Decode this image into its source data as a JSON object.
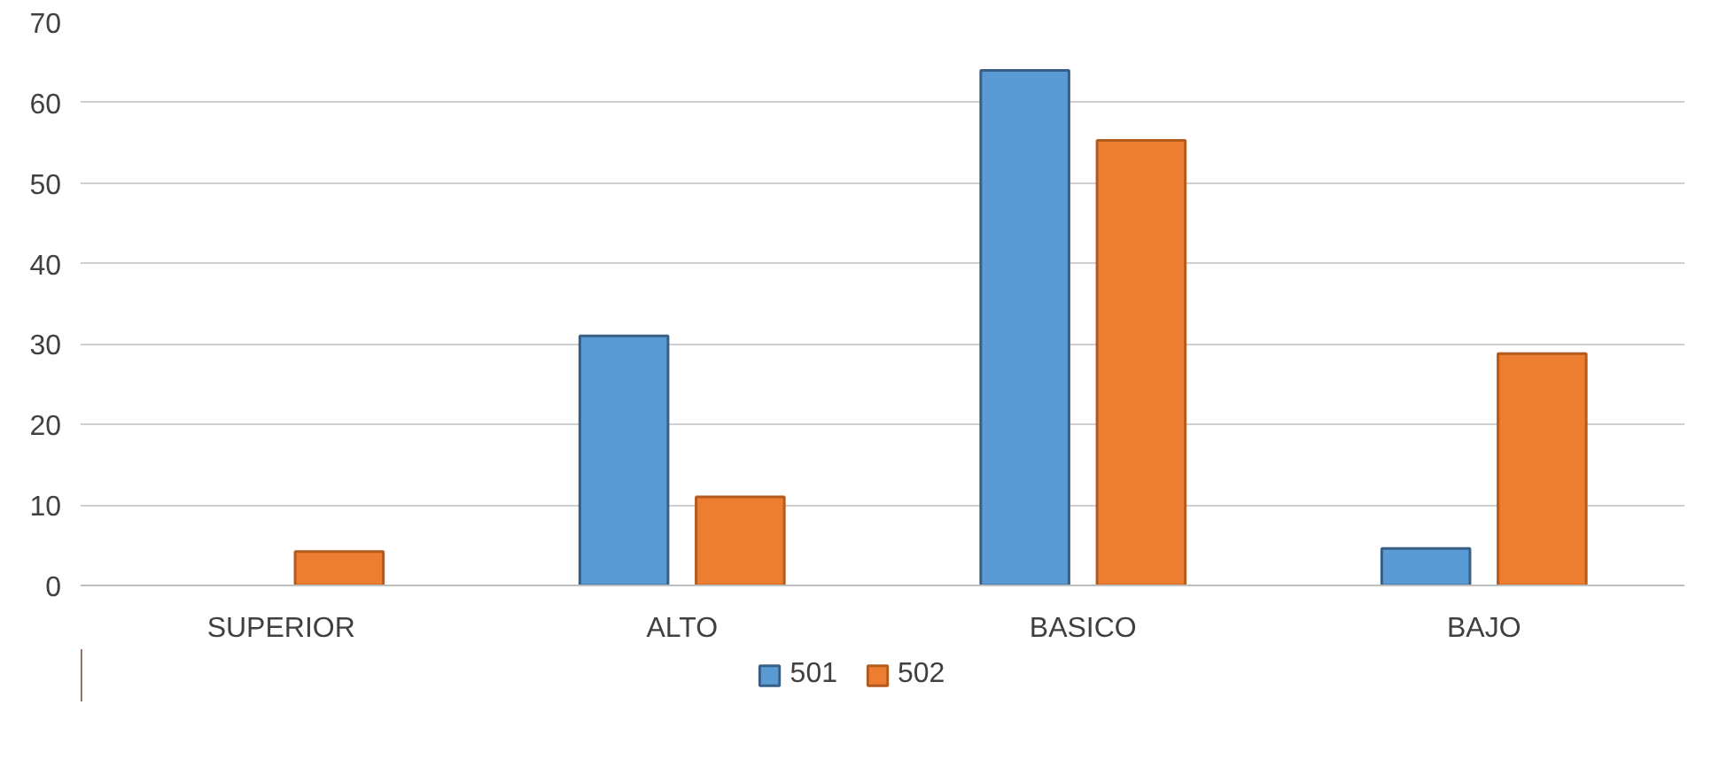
{
  "chart_data": {
    "type": "bar",
    "categories": [
      "SUPERIOR",
      "ALTO",
      "BASICO",
      "BAJO"
    ],
    "series": [
      {
        "name": "501",
        "color": "#5b9bd5",
        "values": [
          null,
          31,
          64,
          4.6
        ]
      },
      {
        "name": "502",
        "color": "#ed7d31",
        "values": [
          4.2,
          11,
          55.3,
          28.8
        ]
      }
    ],
    "ylim": [
      0,
      70
    ],
    "yticks": [
      0,
      10,
      20,
      30,
      40,
      50,
      60,
      70
    ],
    "grid": "y",
    "legend": "bottom"
  }
}
